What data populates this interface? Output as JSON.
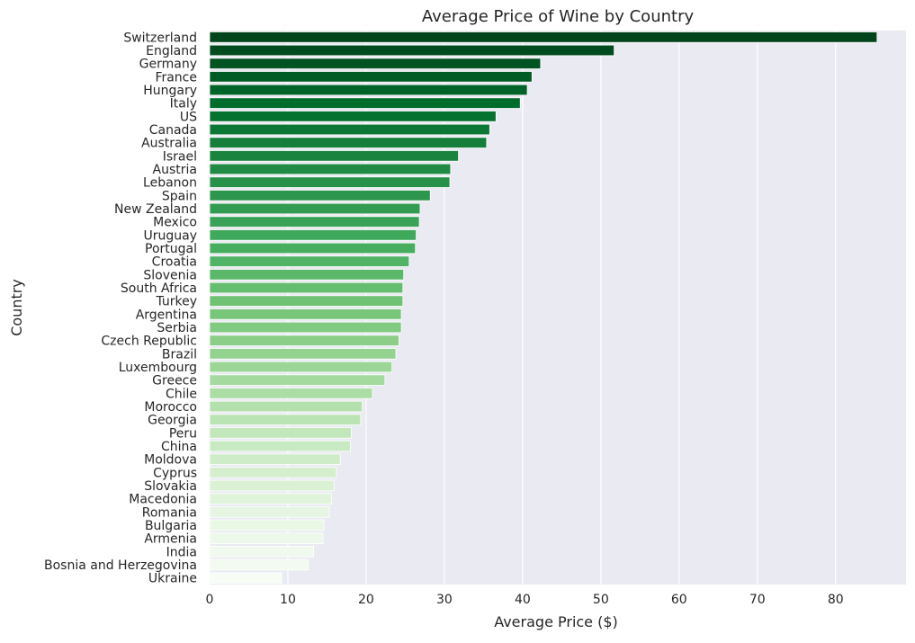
{
  "chart_data": {
    "type": "bar",
    "orientation": "horizontal",
    "title": "Average Price of Wine by Country",
    "xlabel": "Average Price ($)",
    "ylabel": "Country",
    "xlim": [
      0,
      89
    ],
    "xticks": [
      0,
      10,
      20,
      30,
      40,
      50,
      60,
      70,
      80
    ],
    "grid": true,
    "background_color": "#eaeaf2",
    "gridline_color": "#ffffff",
    "palette": "Greens (dark to light)",
    "color_dark": "#00441b",
    "color_light": "#f7fcf5",
    "categories": [
      "Switzerland",
      "England",
      "Germany",
      "France",
      "Hungary",
      "Italy",
      "US",
      "Canada",
      "Australia",
      "Israel",
      "Austria",
      "Lebanon",
      "Spain",
      "New Zealand",
      "Mexico",
      "Uruguay",
      "Portugal",
      "Croatia",
      "Slovenia",
      "South Africa",
      "Turkey",
      "Argentina",
      "Serbia",
      "Czech Republic",
      "Brazil",
      "Luxembourg",
      "Greece",
      "Chile",
      "Morocco",
      "Georgia",
      "Peru",
      "China",
      "Moldova",
      "Cyprus",
      "Slovakia",
      "Macedonia",
      "Romania",
      "Bulgaria",
      "Armenia",
      "India",
      "Bosnia and Herzegovina",
      "Ukraine"
    ],
    "values": [
      85.3,
      51.7,
      42.3,
      41.2,
      40.6,
      39.7,
      36.6,
      35.8,
      35.4,
      31.8,
      30.8,
      30.7,
      28.2,
      26.9,
      26.8,
      26.4,
      26.3,
      25.5,
      24.8,
      24.7,
      24.7,
      24.5,
      24.5,
      24.2,
      23.8,
      23.3,
      22.4,
      20.8,
      19.5,
      19.3,
      18.1,
      18.0,
      16.7,
      16.2,
      15.9,
      15.6,
      15.3,
      14.6,
      14.5,
      13.3,
      12.6,
      9.2
    ]
  }
}
